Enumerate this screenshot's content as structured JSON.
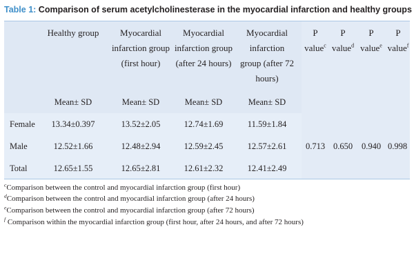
{
  "title": {
    "label": "Table 1:",
    "text": " Comparison of serum acetylcholinesterase in the myocardial infarction and healthy groups"
  },
  "columns": {
    "healthy": "Healthy group",
    "mi_first": "Myocardial infarction group (first hour)",
    "mi_24": "Myocardial infarction group (after 24 hours)",
    "mi_72": "Myocardial infarction group (after 72 hours)",
    "p_prefix": "P value",
    "p_c": "c",
    "p_d": "d",
    "p_e": "e",
    "p_f": "f"
  },
  "subheader": "Mean± SD",
  "rows": [
    {
      "label": "Female",
      "healthy": "13.34±0.397",
      "mi_first": "13.52±2.05",
      "mi_24": "12.74±1.69",
      "mi_72": "11.59±1.84"
    },
    {
      "label": "Male",
      "healthy": "12.52±1.66",
      "mi_first": "12.48±2.94",
      "mi_24": "12.59±2.45",
      "mi_72": "12.57±2.61"
    },
    {
      "label": "Total",
      "healthy": "12.65±1.55",
      "mi_first": "12.65±2.81",
      "mi_24": "12.61±2.32",
      "mi_72": "12.41±2.49"
    }
  ],
  "p_values": {
    "c": "0.713",
    "d": "0.650",
    "e": "0.940",
    "f": "0.998"
  },
  "footnotes": [
    {
      "mark": "c",
      "text": "Comparison between the control and myocardial infarction group (first hour)"
    },
    {
      "mark": "d",
      "text": "Comparison between the control and myocardial infarction group (after 24 hours)"
    },
    {
      "mark": "e",
      "text": "Comparison between the control and myocardial infarction group (after 72 hours)"
    },
    {
      "mark": "f",
      "text": " Comparison within the myocardial infarction group (first hour, after 24 hours, and after 72 hours)"
    }
  ],
  "colors": {
    "title_label": "#3f8fc9",
    "table_bg": "#e6eef8",
    "rule": "#a9c6e4"
  }
}
